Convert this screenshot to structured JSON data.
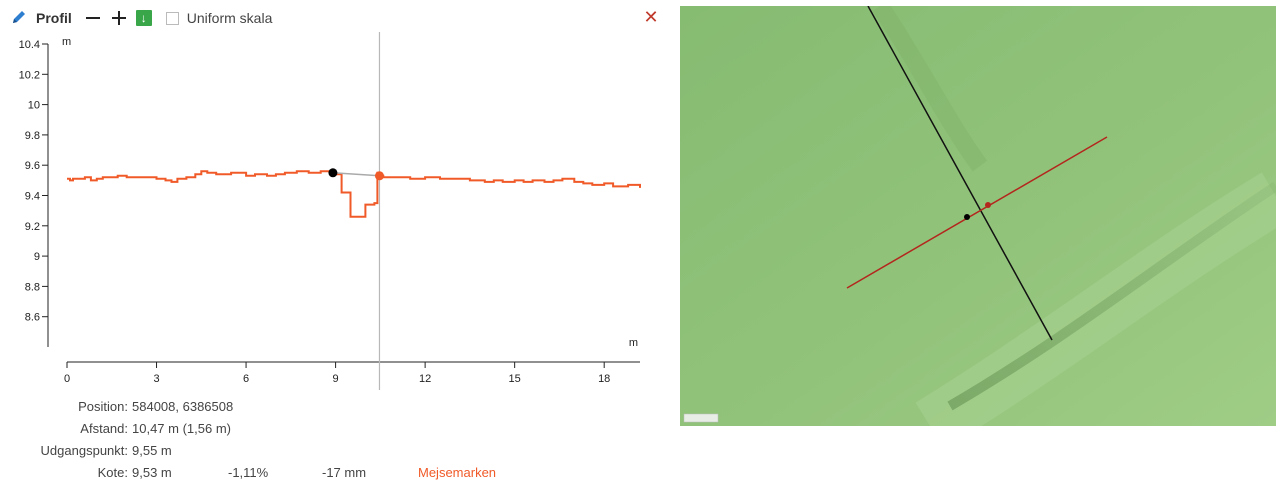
{
  "toolbar": {
    "title": "Profil",
    "uniform_label": "Uniform skala",
    "download_glyph": "↓",
    "close_glyph": "✕",
    "icons": [
      "pencil-icon",
      "minus-icon",
      "plus-icon",
      "download-icon",
      "close-icon"
    ]
  },
  "chart_data": {
    "type": "line",
    "xlabel": "m",
    "ylabel": "m",
    "xlim": [
      0,
      19.2
    ],
    "ylim": [
      8.4,
      10.4
    ],
    "x_ticks": [
      "0",
      "3",
      "6",
      "9",
      "12",
      "15",
      "18"
    ],
    "y_ticks": [
      "10.4",
      "10.2",
      "10",
      "9.8",
      "9.6",
      "9.4",
      "9.2",
      "9",
      "8.8",
      "8.6"
    ],
    "cursor_x": 10.47,
    "start_point": {
      "x": 8.91,
      "y": 9.55
    },
    "cursor_point": {
      "x": 10.47,
      "y": 9.53
    },
    "series": [
      {
        "color": "#f05a28",
        "x": [
          0,
          0.1,
          0.2,
          0.5,
          0.6,
          0.8,
          1.0,
          1.2,
          1.7,
          2.0,
          2.5,
          3.0,
          3.3,
          3.5,
          3.7,
          4.0,
          4.3,
          4.5,
          4.7,
          5.0,
          5.5,
          6.0,
          6.3,
          6.7,
          7.0,
          7.3,
          7.7,
          8.1,
          8.5,
          8.91,
          9.0,
          9.2,
          9.4,
          9.5,
          9.8,
          10.0,
          10.1,
          10.3,
          10.4,
          10.47,
          10.6,
          11.0,
          11.5,
          12.0,
          12.5,
          13.0,
          13.5,
          14.0,
          14.3,
          14.6,
          15.0,
          15.3,
          15.6,
          16.0,
          16.3,
          16.6,
          16.8,
          17.0,
          17.3,
          17.6,
          18.0,
          18.3,
          18.6,
          18.8,
          19.0,
          19.2
        ],
        "values": [
          9.51,
          9.5,
          9.51,
          9.51,
          9.52,
          9.5,
          9.51,
          9.52,
          9.53,
          9.52,
          9.52,
          9.51,
          9.5,
          9.49,
          9.51,
          9.52,
          9.54,
          9.56,
          9.55,
          9.54,
          9.55,
          9.53,
          9.54,
          9.53,
          9.54,
          9.55,
          9.56,
          9.55,
          9.56,
          9.55,
          9.54,
          9.42,
          9.42,
          9.26,
          9.26,
          9.34,
          9.34,
          9.35,
          9.55,
          9.53,
          9.52,
          9.52,
          9.51,
          9.52,
          9.51,
          9.51,
          9.5,
          9.49,
          9.5,
          9.49,
          9.5,
          9.49,
          9.5,
          9.49,
          9.5,
          9.51,
          9.51,
          9.49,
          9.48,
          9.47,
          9.48,
          9.46,
          9.46,
          9.47,
          9.47,
          9.45
        ]
      }
    ],
    "connector_color": "#aaaaaa"
  },
  "info": {
    "position_label": "Position:",
    "position_value": "584008, 6386508",
    "afstand_label": "Afstand:",
    "afstand_value": "10,47 m (1,56 m)",
    "udgang_label": "Udgangspunkt:",
    "udgang_value": "9,55 m",
    "kote_label": "Kote:",
    "kote_value": "9,53 m",
    "slope_value": "-1,11%",
    "mm_value": "-17 mm",
    "mejse_label": "Mejsemarken",
    "accent": "#f05a28"
  },
  "map": {
    "background": "#8fbf78",
    "scale_label": "",
    "black_line_color": "#111111",
    "red_line_color": "#b3261e"
  }
}
